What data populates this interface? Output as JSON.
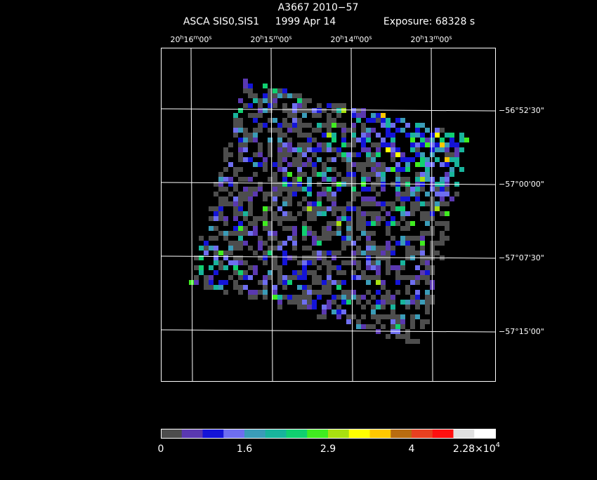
{
  "title": "A3667 2010−57",
  "subtitle": {
    "instrument": "ASCA SIS0,SIS1",
    "date": "1999 Apr 14",
    "exposure": "Exposure: 68328 s"
  },
  "ra_labels": [
    [
      "20",
      "h",
      "16",
      "m",
      "00",
      "s"
    ],
    [
      "20",
      "h",
      "15",
      "m",
      "00",
      "s"
    ],
    [
      "20",
      "h",
      "14",
      "m",
      "00",
      "s"
    ],
    [
      "20",
      "h",
      "13",
      "m",
      "00",
      "s"
    ]
  ],
  "dec_labels": [
    "−56°52'30\"",
    "−57°00'00\"",
    "−57°07'30\"",
    "−57°15'00\""
  ],
  "colorbar": {
    "colors": [
      "#4d4d4d",
      "#5a38b0",
      "#1414d8",
      "#6e6ef0",
      "#3a9cb8",
      "#18b49c",
      "#10d070",
      "#40ec20",
      "#a8e010",
      "#ffff00",
      "#ffc800",
      "#b86c10",
      "#e84020",
      "#ff1010",
      "#e0e0e0",
      "#ffffff"
    ],
    "labels": [
      "0",
      "1.6",
      "2.9",
      "4"
    ],
    "max_label": {
      "mantissa": "2.28×10",
      "exponent": "4"
    }
  }
}
